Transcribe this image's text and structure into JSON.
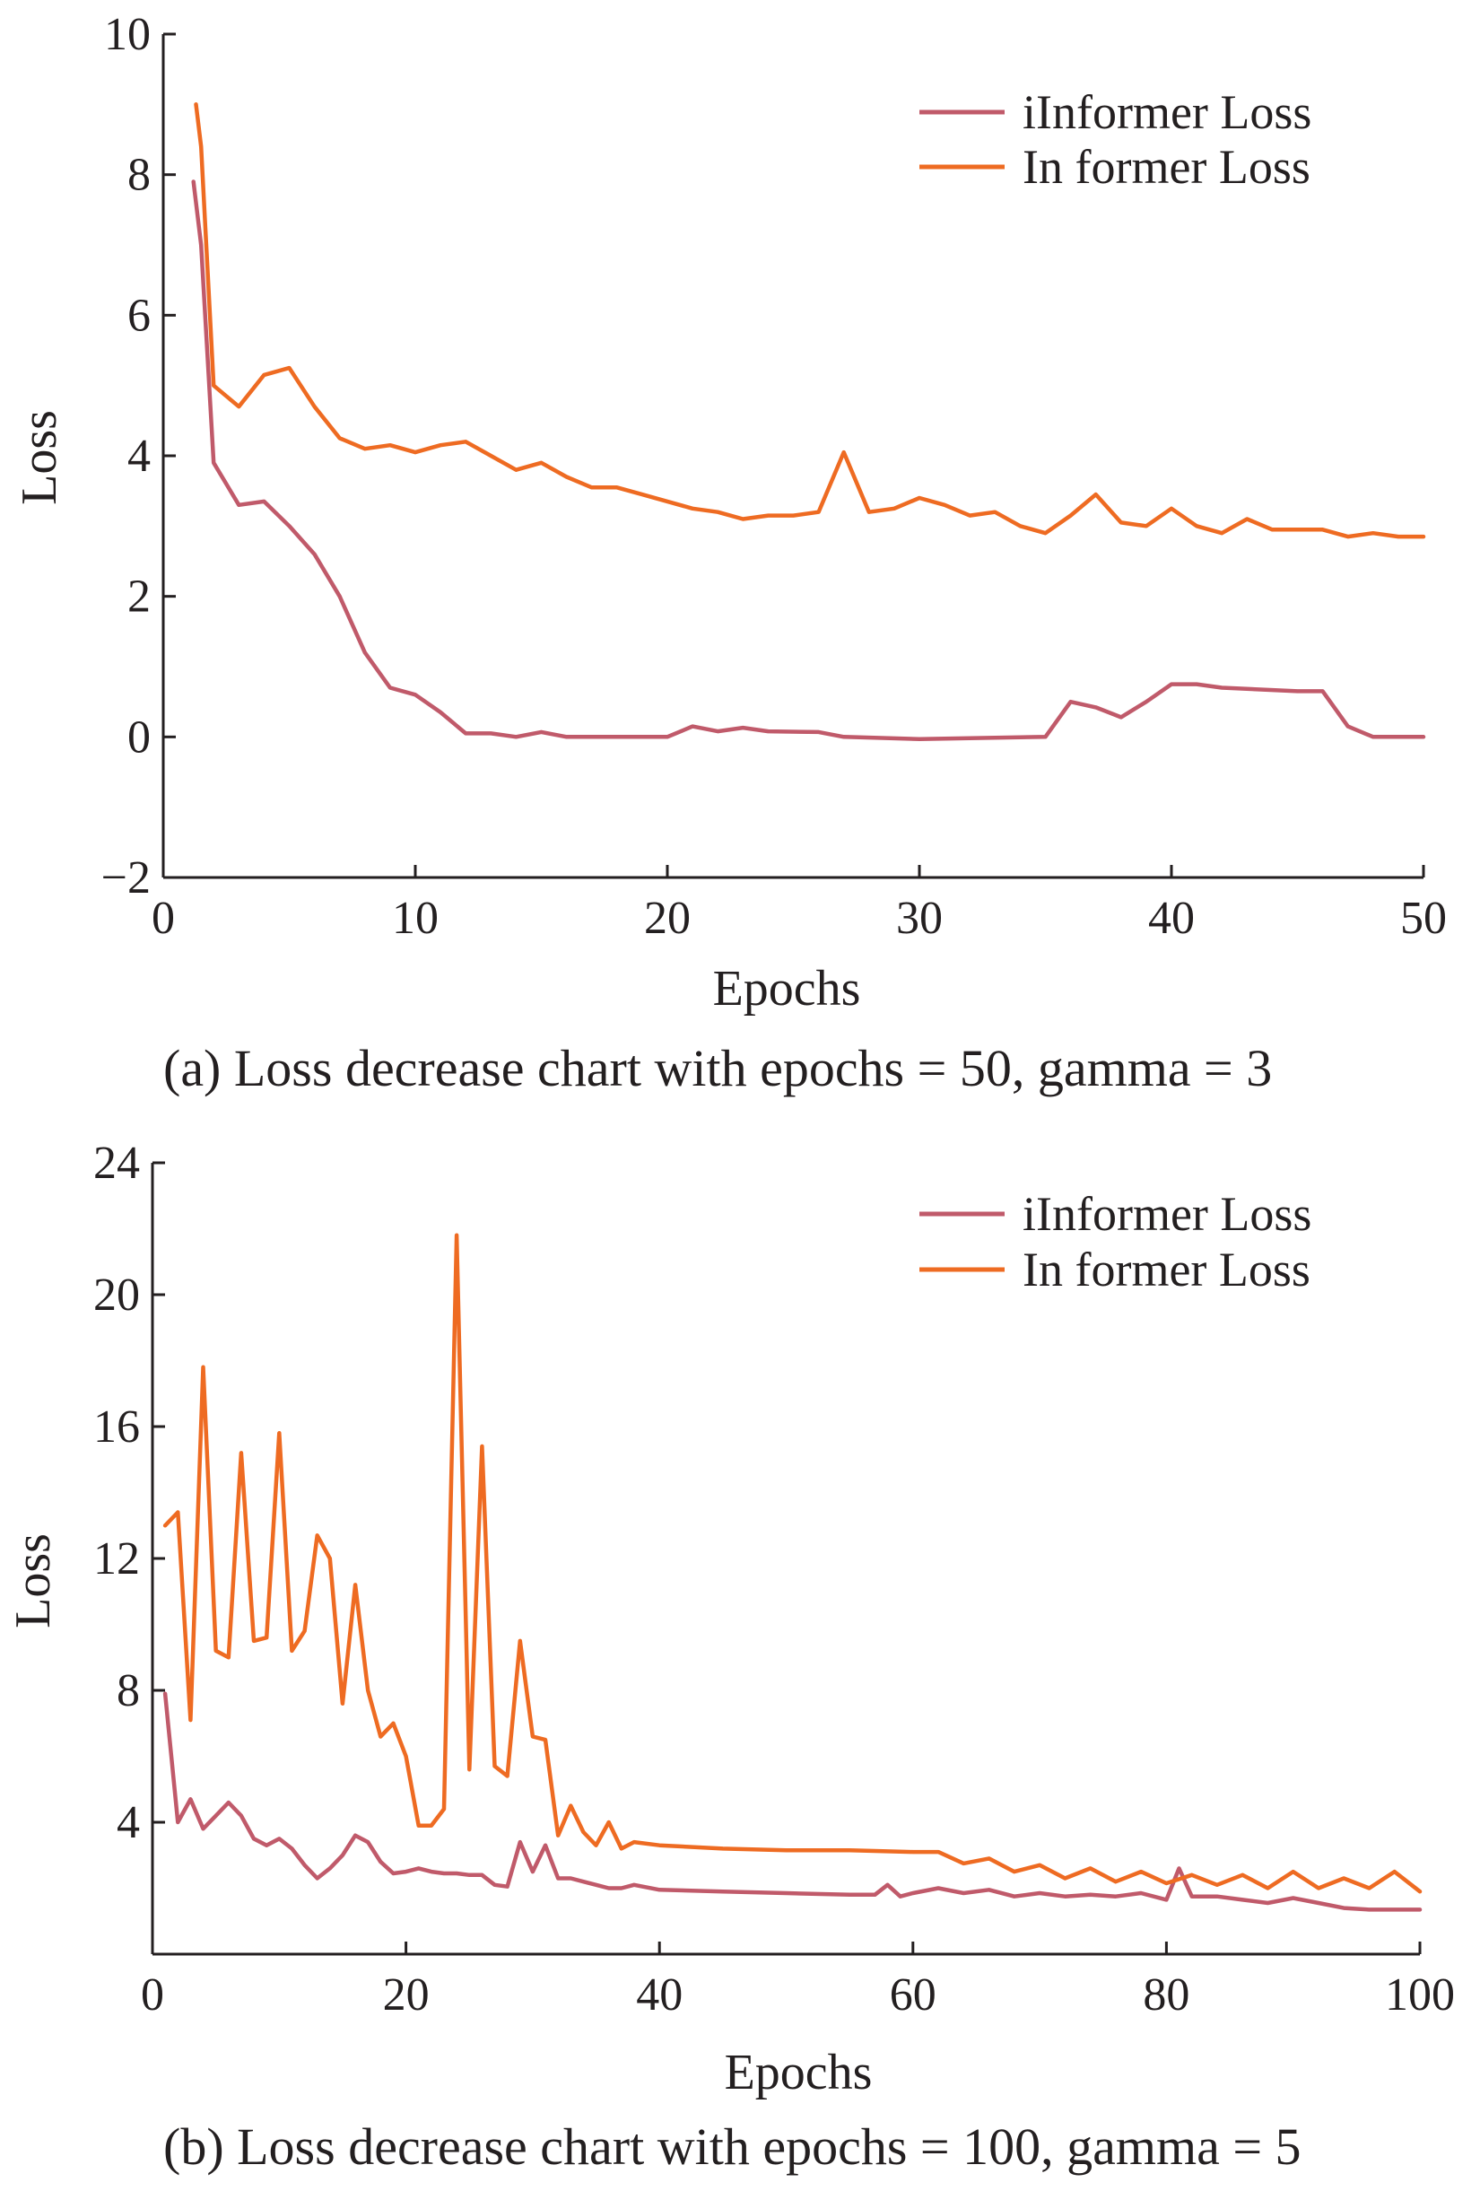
{
  "colors": {
    "iinformer": "#c05a6a",
    "informer": "#ee6b22",
    "axis": "#231f20"
  },
  "chart_data": [
    {
      "type": "line",
      "xlabel": "Epochs",
      "ylabel": "Loss",
      "xlim": [
        0,
        50
      ],
      "ylim": [
        -2,
        10
      ],
      "xticks": [
        0,
        10,
        20,
        30,
        40,
        50
      ],
      "yticks": [
        -2,
        0,
        2,
        4,
        6,
        8,
        10
      ],
      "xtick_labels": [
        "0",
        "10",
        "20",
        "30",
        "40",
        "50"
      ],
      "ytick_labels": [
        "−2",
        "0",
        "2",
        "4",
        "6",
        "8",
        "10"
      ],
      "legend_position": "top-right",
      "caption": "(a) Loss decrease chart with epochs = 50, gamma = 3",
      "series": [
        {
          "name": "iInformer Loss",
          "color_key": "iinformer",
          "points": [
            [
              1.2,
              7.9
            ],
            [
              1.5,
              7.0
            ],
            [
              2,
              3.9
            ],
            [
              3,
              3.3
            ],
            [
              4,
              3.35
            ],
            [
              5,
              3.0
            ],
            [
              6,
              2.6
            ],
            [
              7,
              2.0
            ],
            [
              8,
              1.2
            ],
            [
              9,
              0.7
            ],
            [
              10,
              0.6
            ],
            [
              11,
              0.35
            ],
            [
              12,
              0.05
            ],
            [
              13,
              0.05
            ],
            [
              14,
              0.0
            ],
            [
              15,
              0.07
            ],
            [
              16,
              0.0
            ],
            [
              20,
              0.0
            ],
            [
              21,
              0.15
            ],
            [
              22,
              0.08
            ],
            [
              23,
              0.13
            ],
            [
              24,
              0.08
            ],
            [
              26,
              0.07
            ],
            [
              27,
              0.0
            ],
            [
              30,
              -0.03
            ],
            [
              35,
              0.0
            ],
            [
              36,
              0.5
            ],
            [
              37,
              0.42
            ],
            [
              38,
              0.28
            ],
            [
              39,
              0.5
            ],
            [
              40,
              0.75
            ],
            [
              41,
              0.75
            ],
            [
              42,
              0.7
            ],
            [
              45,
              0.65
            ],
            [
              46,
              0.65
            ],
            [
              47,
              0.15
            ],
            [
              48,
              0.0
            ],
            [
              50,
              0.0
            ]
          ]
        },
        {
          "name": "In former Loss",
          "color_key": "informer",
          "points": [
            [
              1.3,
              9.0
            ],
            [
              1.5,
              8.4
            ],
            [
              2,
              5.0
            ],
            [
              3,
              4.7
            ],
            [
              4,
              5.15
            ],
            [
              5,
              5.25
            ],
            [
              6,
              4.7
            ],
            [
              7,
              4.25
            ],
            [
              8,
              4.1
            ],
            [
              9,
              4.15
            ],
            [
              10,
              4.05
            ],
            [
              11,
              4.15
            ],
            [
              12,
              4.2
            ],
            [
              13,
              4.0
            ],
            [
              14,
              3.8
            ],
            [
              15,
              3.9
            ],
            [
              16,
              3.7
            ],
            [
              17,
              3.55
            ],
            [
              18,
              3.55
            ],
            [
              19,
              3.45
            ],
            [
              20,
              3.35
            ],
            [
              21,
              3.25
            ],
            [
              22,
              3.2
            ],
            [
              23,
              3.1
            ],
            [
              24,
              3.15
            ],
            [
              25,
              3.15
            ],
            [
              26,
              3.2
            ],
            [
              27,
              4.05
            ],
            [
              28,
              3.2
            ],
            [
              29,
              3.25
            ],
            [
              30,
              3.4
            ],
            [
              31,
              3.3
            ],
            [
              32,
              3.15
            ],
            [
              33,
              3.2
            ],
            [
              34,
              3.0
            ],
            [
              35,
              2.9
            ],
            [
              36,
              3.15
            ],
            [
              37,
              3.45
            ],
            [
              38,
              3.05
            ],
            [
              39,
              3.0
            ],
            [
              40,
              3.25
            ],
            [
              41,
              3.0
            ],
            [
              42,
              2.9
            ],
            [
              43,
              3.1
            ],
            [
              44,
              2.95
            ],
            [
              45,
              2.95
            ],
            [
              46,
              2.95
            ],
            [
              47,
              2.85
            ],
            [
              48,
              2.9
            ],
            [
              49,
              2.85
            ],
            [
              50,
              2.85
            ]
          ]
        }
      ]
    },
    {
      "type": "line",
      "xlabel": "Epochs",
      "ylabel": "Loss",
      "xlim": [
        0,
        100
      ],
      "ylim": [
        0,
        24
      ],
      "xticks": [
        0,
        20,
        40,
        60,
        80,
        100
      ],
      "yticks": [
        4,
        8,
        12,
        16,
        20,
        24
      ],
      "xtick_labels": [
        "0",
        "20",
        "40",
        "60",
        "80",
        "100"
      ],
      "ytick_labels": [
        "4",
        "8",
        "12",
        "16",
        "20",
        "24"
      ],
      "legend_position": "top-right",
      "caption": "(b) Loss decrease chart with epochs = 100, gamma = 5",
      "series": [
        {
          "name": "iInformer Loss",
          "color_key": "iinformer",
          "points": [
            [
              1,
              7.9
            ],
            [
              2,
              4.0
            ],
            [
              3,
              4.7
            ],
            [
              4,
              3.8
            ],
            [
              5,
              4.2
            ],
            [
              6,
              4.6
            ],
            [
              7,
              4.2
            ],
            [
              8,
              3.5
            ],
            [
              9,
              3.3
            ],
            [
              10,
              3.5
            ],
            [
              11,
              3.2
            ],
            [
              12,
              2.7
            ],
            [
              13,
              2.3
            ],
            [
              14,
              2.6
            ],
            [
              15,
              3.0
            ],
            [
              16,
              3.6
            ],
            [
              17,
              3.4
            ],
            [
              18,
              2.8
            ],
            [
              19,
              2.45
            ],
            [
              20,
              2.5
            ],
            [
              21,
              2.6
            ],
            [
              22,
              2.5
            ],
            [
              23,
              2.45
            ],
            [
              24,
              2.45
            ],
            [
              25,
              2.4
            ],
            [
              26,
              2.4
            ],
            [
              27,
              2.1
            ],
            [
              28,
              2.05
            ],
            [
              29,
              3.4
            ],
            [
              30,
              2.5
            ],
            [
              31,
              3.3
            ],
            [
              32,
              2.3
            ],
            [
              33,
              2.3
            ],
            [
              34,
              2.2
            ],
            [
              35,
              2.1
            ],
            [
              36,
              2.0
            ],
            [
              37,
              2.0
            ],
            [
              38,
              2.1
            ],
            [
              40,
              1.95
            ],
            [
              45,
              1.9
            ],
            [
              50,
              1.85
            ],
            [
              55,
              1.8
            ],
            [
              57,
              1.8
            ],
            [
              58,
              2.1
            ],
            [
              59,
              1.75
            ],
            [
              60,
              1.85
            ],
            [
              62,
              2.0
            ],
            [
              64,
              1.85
            ],
            [
              66,
              1.95
            ],
            [
              68,
              1.75
            ],
            [
              70,
              1.85
            ],
            [
              72,
              1.75
            ],
            [
              74,
              1.8
            ],
            [
              76,
              1.75
            ],
            [
              78,
              1.85
            ],
            [
              80,
              1.65
            ],
            [
              81,
              2.6
            ],
            [
              82,
              1.75
            ],
            [
              84,
              1.75
            ],
            [
              86,
              1.65
            ],
            [
              88,
              1.55
            ],
            [
              90,
              1.7
            ],
            [
              92,
              1.55
            ],
            [
              94,
              1.4
            ],
            [
              96,
              1.35
            ],
            [
              100,
              1.35
            ]
          ]
        },
        {
          "name": "In former Loss",
          "color_key": "informer",
          "points": [
            [
              1,
              13.0
            ],
            [
              2,
              13.4
            ],
            [
              3,
              7.1
            ],
            [
              4,
              17.8
            ],
            [
              5,
              9.2
            ],
            [
              6,
              9.0
            ],
            [
              7,
              15.2
            ],
            [
              8,
              9.5
            ],
            [
              9,
              9.6
            ],
            [
              10,
              15.8
            ],
            [
              11,
              9.2
            ],
            [
              12,
              9.8
            ],
            [
              13,
              12.7
            ],
            [
              14,
              12.0
            ],
            [
              15,
              7.6
            ],
            [
              16,
              11.2
            ],
            [
              17,
              8.0
            ],
            [
              18,
              6.6
            ],
            [
              19,
              7.0
            ],
            [
              20,
              6.0
            ],
            [
              21,
              3.9
            ],
            [
              22,
              3.9
            ],
            [
              23,
              4.4
            ],
            [
              24,
              21.8
            ],
            [
              25,
              5.6
            ],
            [
              26,
              15.4
            ],
            [
              27,
              5.7
            ],
            [
              28,
              5.4
            ],
            [
              29,
              9.5
            ],
            [
              30,
              6.6
            ],
            [
              31,
              6.5
            ],
            [
              32,
              3.6
            ],
            [
              33,
              4.5
            ],
            [
              34,
              3.7
            ],
            [
              35,
              3.3
            ],
            [
              36,
              4.0
            ],
            [
              37,
              3.2
            ],
            [
              38,
              3.4
            ],
            [
              40,
              3.3
            ],
            [
              45,
              3.2
            ],
            [
              50,
              3.15
            ],
            [
              55,
              3.15
            ],
            [
              60,
              3.1
            ],
            [
              62,
              3.1
            ],
            [
              64,
              2.75
            ],
            [
              66,
              2.9
            ],
            [
              68,
              2.5
            ],
            [
              70,
              2.7
            ],
            [
              72,
              2.3
            ],
            [
              74,
              2.6
            ],
            [
              76,
              2.2
            ],
            [
              78,
              2.5
            ],
            [
              80,
              2.15
            ],
            [
              82,
              2.4
            ],
            [
              84,
              2.1
            ],
            [
              86,
              2.4
            ],
            [
              88,
              2.0
            ],
            [
              90,
              2.5
            ],
            [
              92,
              2.0
            ],
            [
              94,
              2.3
            ],
            [
              96,
              2.0
            ],
            [
              98,
              2.5
            ],
            [
              100,
              1.9
            ]
          ]
        }
      ]
    }
  ]
}
